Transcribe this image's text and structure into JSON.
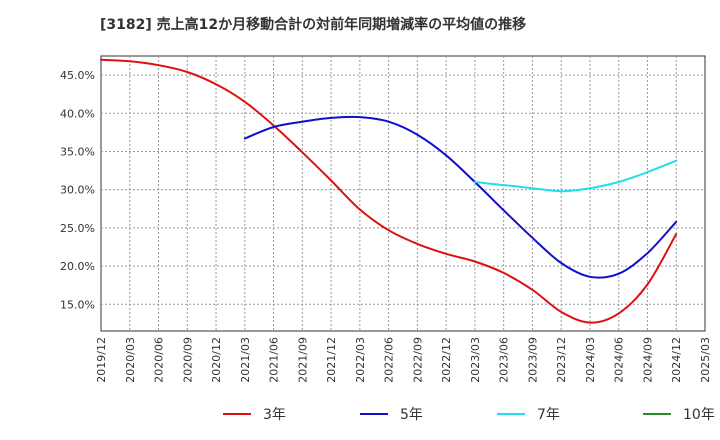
{
  "chart_data": {
    "type": "line",
    "title": "[3182]  売上高12か月移動合計の対前年同期増減率の平均値の推移",
    "xlabel": "",
    "ylabel": "",
    "ylim": [
      11.5,
      47.5
    ],
    "yticks": [
      15,
      20,
      25,
      30,
      35,
      40,
      45
    ],
    "ytick_labels": [
      "15.0%",
      "20.0%",
      "25.0%",
      "30.0%",
      "35.0%",
      "40.0%",
      "45.0%"
    ],
    "x_labels": [
      "2019/12",
      "2020/03",
      "2020/06",
      "2020/09",
      "2020/12",
      "2021/03",
      "2021/06",
      "2021/09",
      "2021/12",
      "2022/03",
      "2022/06",
      "2022/09",
      "2022/12",
      "2023/03",
      "2023/06",
      "2023/09",
      "2023/12",
      "2024/03",
      "2024/06",
      "2024/09",
      "2024/12",
      "2025/03"
    ],
    "grid": true,
    "legend_position": "bottom",
    "series": [
      {
        "name": "3年",
        "color": "#dd1111",
        "start_index": 0,
        "values": [
          47.0,
          46.8,
          46.3,
          45.4,
          43.8,
          41.5,
          38.4,
          34.9,
          31.2,
          27.4,
          24.7,
          22.9,
          21.6,
          20.6,
          19.1,
          16.9,
          14.0,
          12.6,
          13.8,
          17.6,
          24.2
        ]
      },
      {
        "name": "5年",
        "color": "#1010cc",
        "start_index": 5,
        "values": [
          36.7,
          38.2,
          38.9,
          39.4,
          39.5,
          38.9,
          37.2,
          34.5,
          31.0,
          27.3,
          23.7,
          20.4,
          18.6,
          19.0,
          21.7,
          25.8
        ]
      },
      {
        "name": "7年",
        "color": "#22ddee",
        "start_index": 13,
        "values": [
          31.0,
          30.6,
          30.2,
          29.8,
          30.2,
          31.0,
          32.3,
          33.8
        ]
      },
      {
        "name": "10年",
        "color": "#2b8a2b",
        "start_index": 0,
        "values": []
      }
    ]
  }
}
